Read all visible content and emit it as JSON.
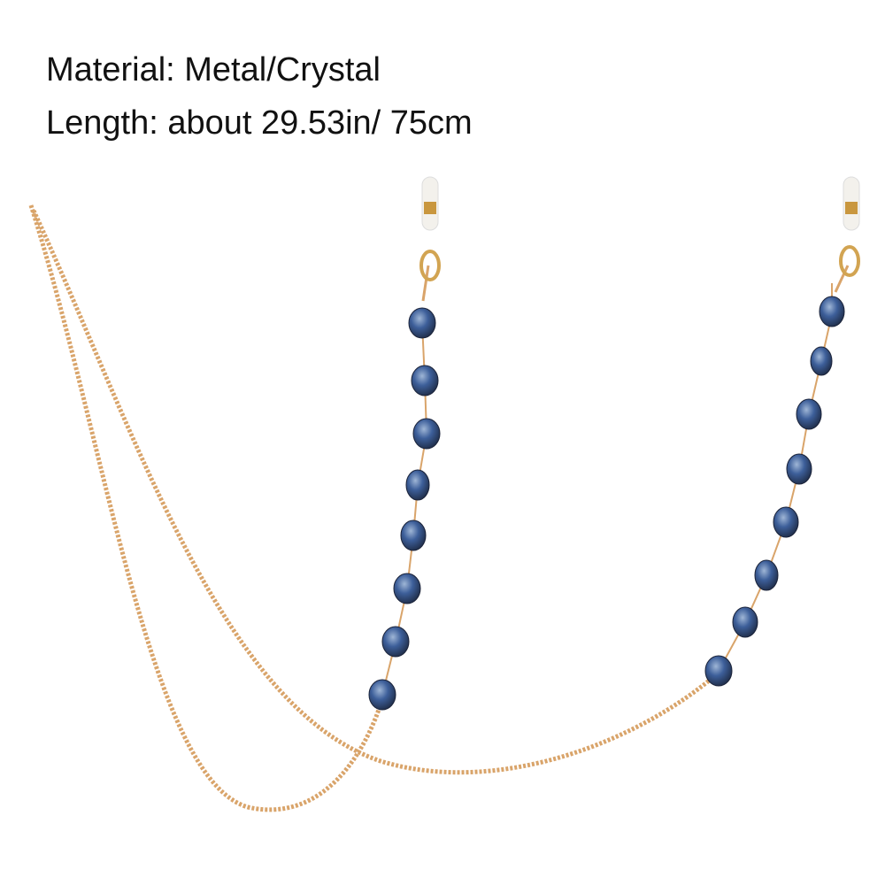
{
  "text": {
    "material": "Material: Metal/Crystal",
    "length": "Length: about 29.53in/ 75cm"
  }
}
